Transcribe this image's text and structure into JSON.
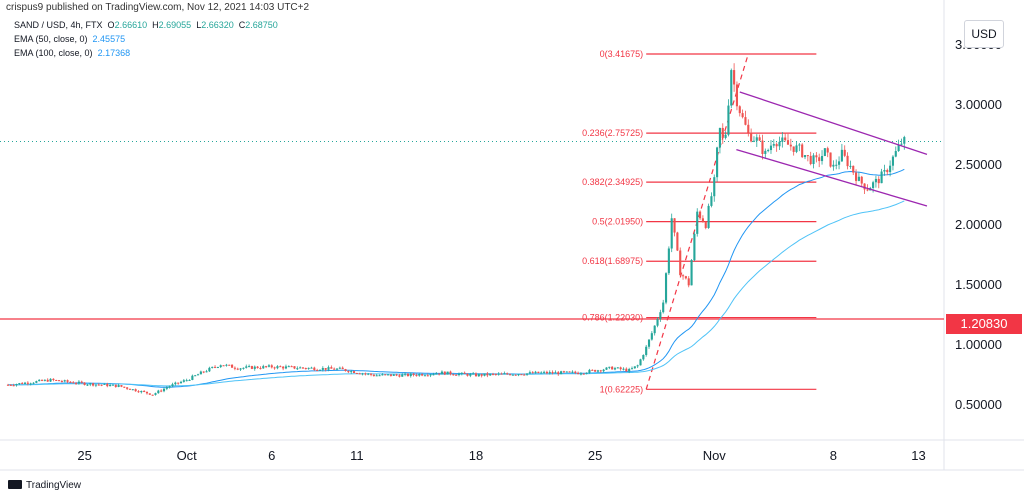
{
  "header": {
    "published": "crispus9 published on TradingView.com, Nov 12, 2021 14:03 UTC+2",
    "symbol": "SAND / USD, 4h, FTX",
    "ohlc": {
      "o_label": "O",
      "o": "2.66610",
      "h_label": "H",
      "h": "2.69055",
      "l_label": "L",
      "l": "2.66320",
      "c_label": "C",
      "c": "2.68750"
    },
    "ema50_label": "EMA (50, close, 0)",
    "ema50_value": "2.45575",
    "ema100_label": "EMA (100, close, 0)",
    "ema100_value": "2.17368"
  },
  "currency_label": "USD",
  "brand": "TradingView",
  "colors": {
    "up": "#26a69a",
    "down": "#ef5350",
    "ema": "#2196f3",
    "ema2": "#4fc3f7",
    "fib": "#f23645",
    "channel": "#9c27b0",
    "level": "#f23645"
  },
  "chart_data": {
    "type": "candlestick",
    "title": "SAND / USD, 4h, FTX",
    "ylabel": "USD",
    "ylim": [
      0.2,
      3.8
    ],
    "yticks": [
      "3.50000",
      "3.00000",
      "2.50000",
      "2.00000",
      "1.50000",
      "1.00000",
      "0.50000"
    ],
    "ytick_values": [
      3.5,
      3.0,
      2.5,
      2.0,
      1.5,
      1.0,
      0.5
    ],
    "xticks": [
      {
        "label": "25",
        "day": -6
      },
      {
        "label": "Oct",
        "day": 0
      },
      {
        "label": "6",
        "day": 5
      },
      {
        "label": "11",
        "day": 10
      },
      {
        "label": "18",
        "day": 17
      },
      {
        "label": "25",
        "day": 24
      },
      {
        "label": "Nov",
        "day": 31
      },
      {
        "label": "8",
        "day": 38
      },
      {
        "label": "13",
        "day": 43
      }
    ],
    "xlim_days": [
      -10.5,
      44.5
    ],
    "close_series": {
      "day": [
        -10.5,
        -8,
        -6,
        -4,
        -2,
        -1,
        0,
        1,
        2,
        3,
        5,
        7,
        9,
        11,
        13,
        15,
        17,
        19,
        21,
        23,
        25,
        26,
        26.5,
        27,
        27.5,
        28,
        28.5,
        29,
        29.5,
        30,
        30.5,
        31,
        31.3,
        31.6,
        32,
        32.3,
        32.6,
        33,
        33.5,
        34,
        34.5,
        35,
        35.5,
        36,
        36.5,
        37,
        37.5,
        38,
        38.5,
        39,
        39.5,
        40,
        40.5,
        41,
        41.5,
        42,
        42.2
      ],
      "close": [
        0.66,
        0.7,
        0.67,
        0.65,
        0.58,
        0.65,
        0.7,
        0.77,
        0.83,
        0.8,
        0.81,
        0.8,
        0.79,
        0.74,
        0.74,
        0.76,
        0.74,
        0.75,
        0.76,
        0.76,
        0.8,
        0.78,
        0.82,
        0.97,
        1.15,
        1.35,
        2.05,
        1.6,
        1.5,
        2.1,
        2.0,
        2.35,
        2.8,
        2.65,
        3.3,
        3.05,
        2.9,
        2.75,
        2.7,
        2.58,
        2.7,
        2.68,
        2.65,
        2.62,
        2.55,
        2.52,
        2.6,
        2.47,
        2.58,
        2.48,
        2.36,
        2.3,
        2.35,
        2.42,
        2.55,
        2.68,
        2.6875
      ]
    },
    "series": [
      {
        "name": "EMA (50, close, 0)",
        "last": 2.45575
      },
      {
        "name": "EMA (100, close, 0)",
        "last": 2.17368
      }
    ],
    "fibonacci": [
      {
        "label": "0(3.41675)",
        "value": 3.41675
      },
      {
        "label": "0.236(2.75725)",
        "value": 2.75725
      },
      {
        "label": "0.382(2.34925)",
        "value": 2.34925
      },
      {
        "label": "0.5(2.01950)",
        "value": 2.0195
      },
      {
        "label": "0.618(1.68975)",
        "value": 1.68975
      },
      {
        "label": "0.786(1.22030)",
        "value": 1.2203
      },
      {
        "label": "1(0.62225)",
        "value": 0.62225
      }
    ],
    "fib_day_range": [
      27,
      37
    ],
    "horizontal_level": {
      "label": "1.20830",
      "value": 1.2083
    },
    "last_price": 2.6875,
    "channel": [
      {
        "from": [
          32.5,
          3.1
        ],
        "to": [
          43.5,
          2.58
        ]
      },
      {
        "from": [
          32.3,
          2.62
        ],
        "to": [
          43.5,
          2.15
        ]
      }
    ]
  }
}
